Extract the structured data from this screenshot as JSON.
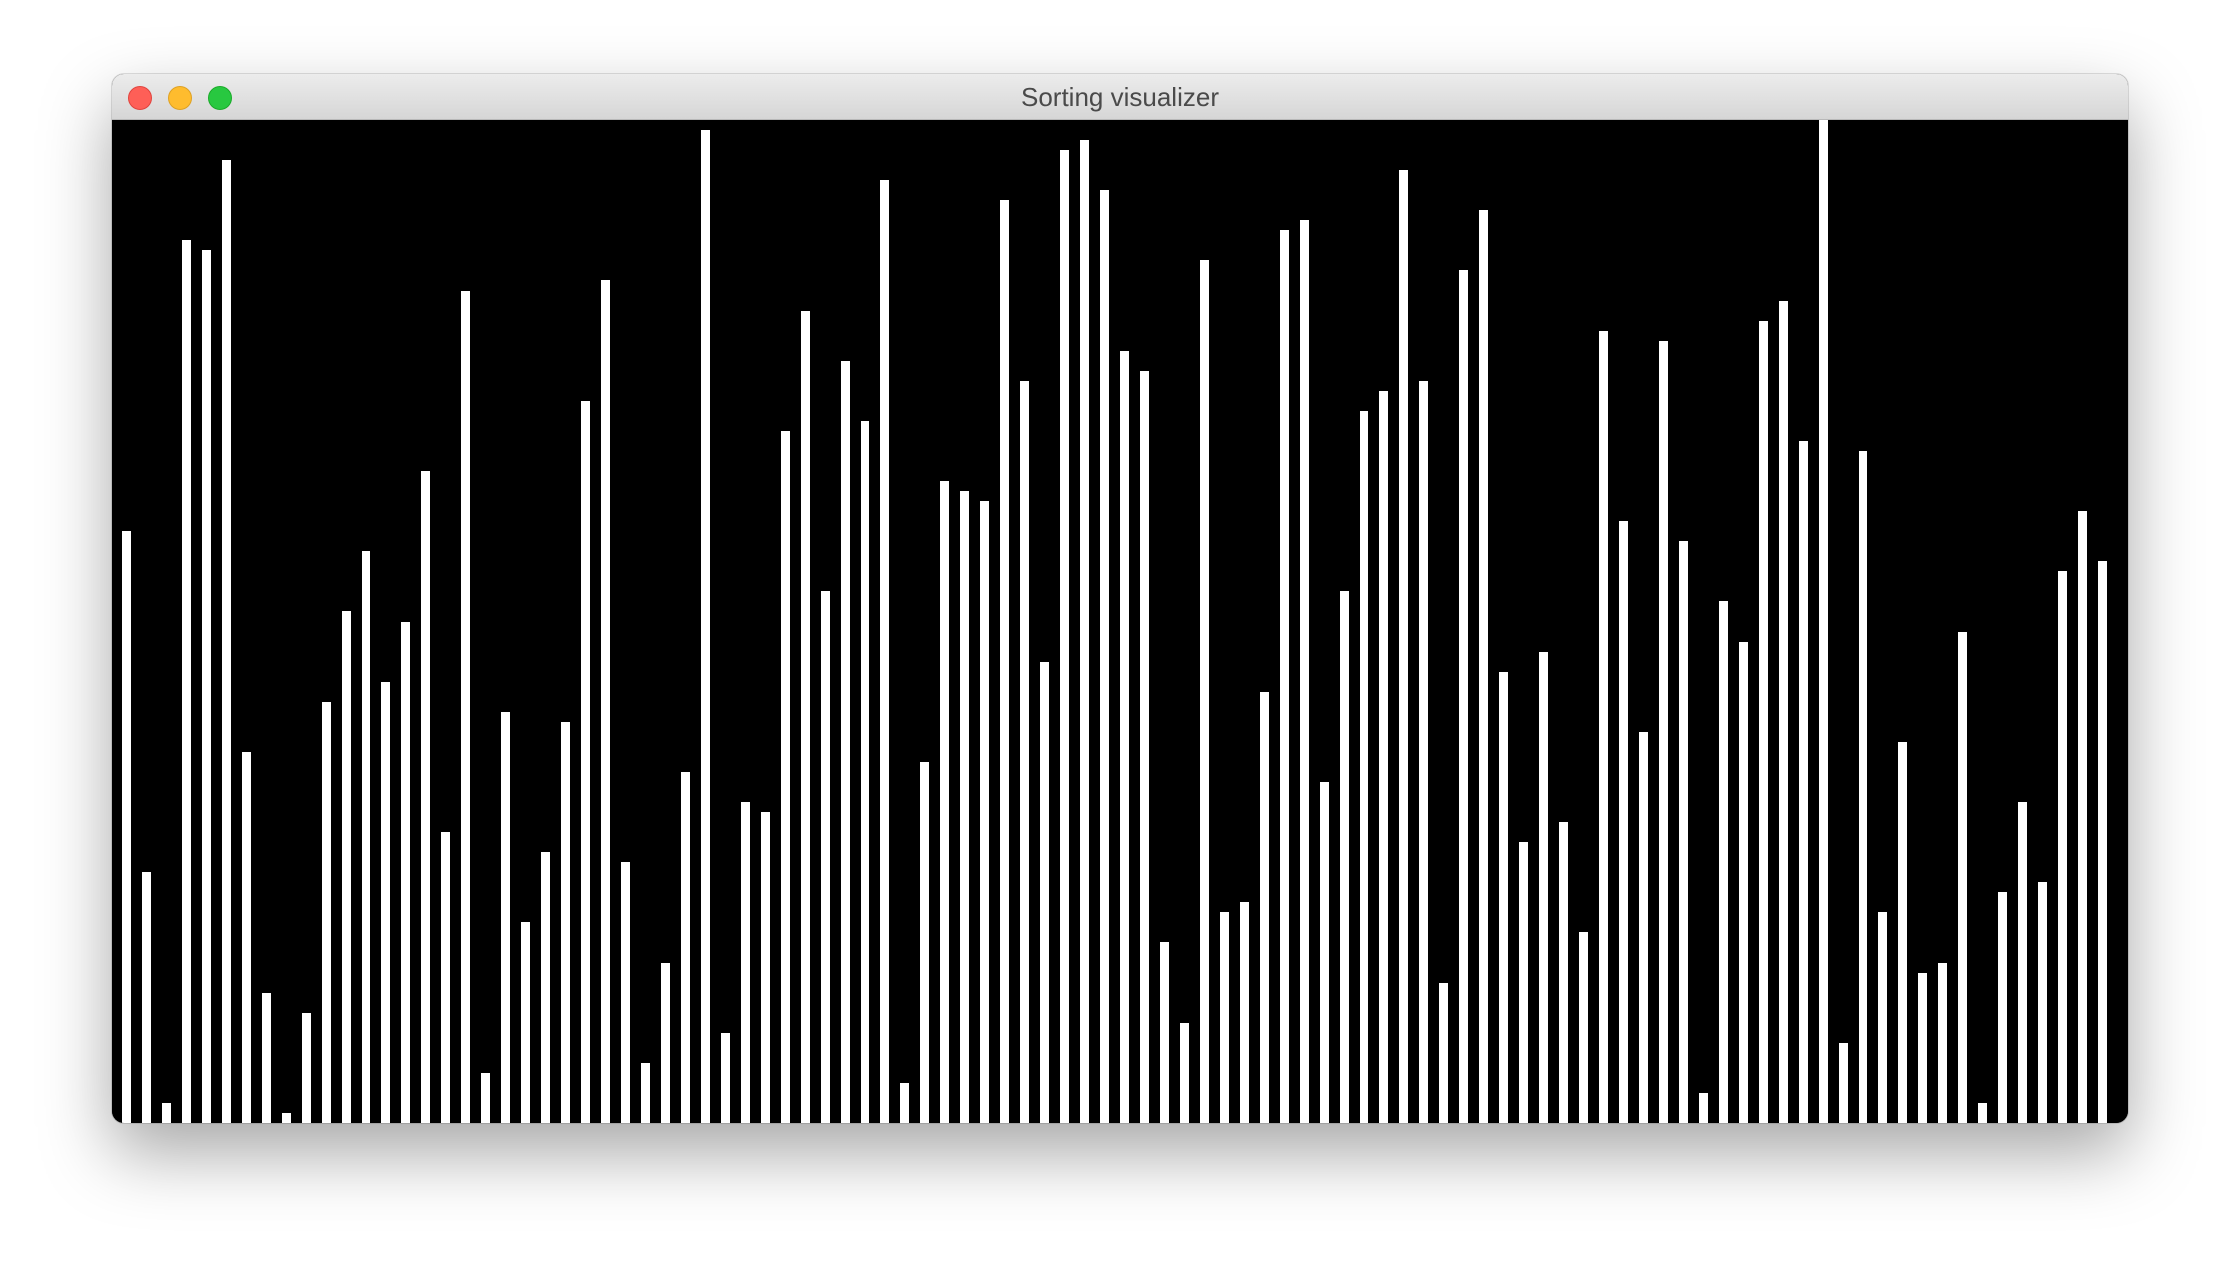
{
  "window": {
    "title": "Sorting visualizer"
  },
  "colors": {
    "background": "#000000",
    "bar": "#ffffff",
    "close": "#fe5f57",
    "minimize": "#febc2e",
    "maximize": "#28c840"
  },
  "icons": {
    "close": "close-icon",
    "minimize": "minimize-icon",
    "maximize": "maximize-icon"
  },
  "chart_data": {
    "type": "bar",
    "title": "",
    "xlabel": "",
    "ylabel": "",
    "ylim": [
      0,
      100
    ],
    "values": [
      59,
      25,
      2,
      88,
      87,
      96,
      37,
      13,
      1,
      11,
      42,
      51,
      57,
      44,
      50,
      65,
      29,
      83,
      5,
      41,
      20,
      27,
      40,
      72,
      84,
      26,
      6,
      16,
      35,
      99,
      9,
      32,
      31,
      69,
      81,
      53,
      76,
      70,
      94,
      4,
      36,
      64,
      63,
      62,
      92,
      74,
      46,
      97,
      98,
      93,
      77,
      75,
      18,
      10,
      86,
      21,
      22,
      43,
      89,
      90,
      34,
      53,
      71,
      73,
      95,
      74,
      14,
      85,
      91,
      45,
      28,
      47,
      30,
      19,
      79,
      60,
      39,
      78,
      58,
      3,
      52,
      48,
      80,
      82,
      68,
      100,
      8,
      67,
      21,
      38,
      15,
      16,
      49,
      2,
      23,
      32,
      24,
      55,
      61,
      56
    ]
  }
}
